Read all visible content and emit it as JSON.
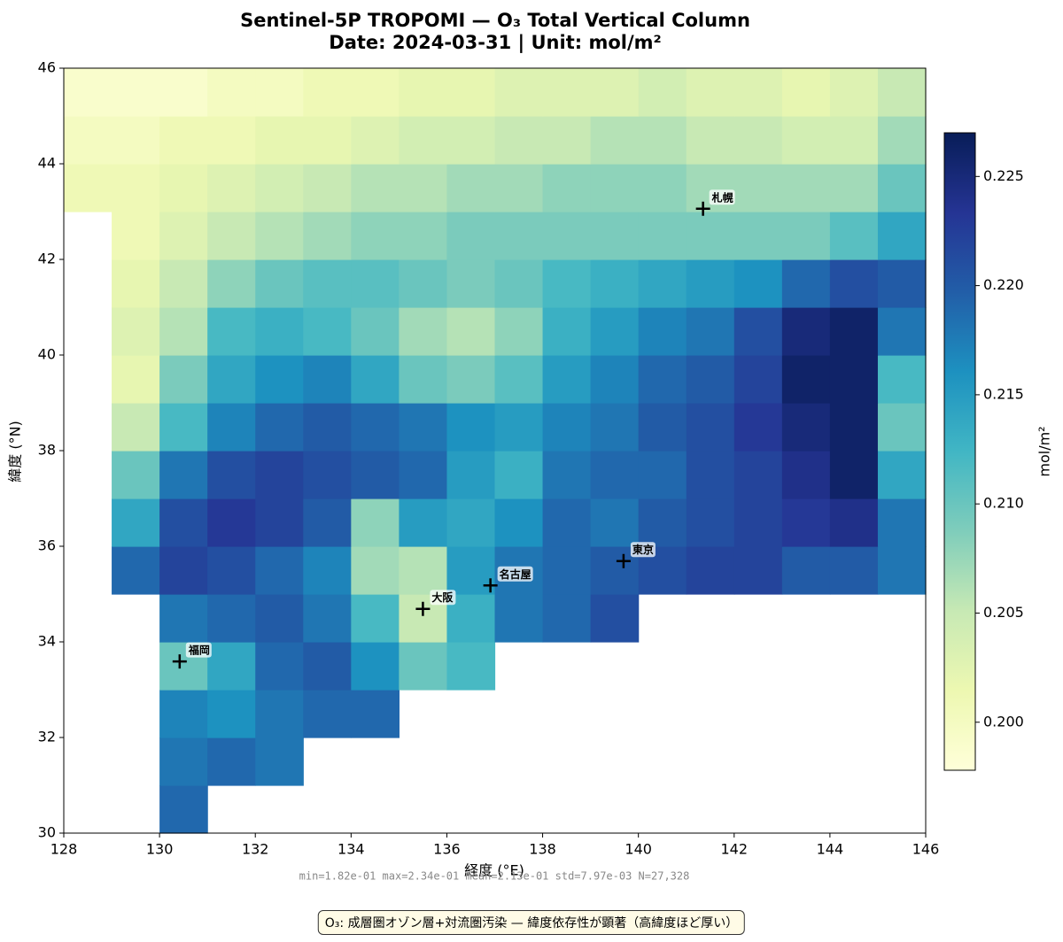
{
  "chart_data": {
    "type": "heatmap",
    "title": "Sentinel-5P TROPOMI — O₃ Total Vertical Column",
    "subtitle": "Date: 2024-03-31  |  Unit: mol/m²",
    "x_label": "経度 (°E)",
    "y_label": "緯度 (°N)",
    "xlim": [
      128,
      146
    ],
    "ylim": [
      30,
      46
    ],
    "xticks": [
      128,
      130,
      132,
      134,
      136,
      138,
      140,
      142,
      144,
      146
    ],
    "yticks": [
      30,
      32,
      34,
      36,
      38,
      40,
      42,
      44,
      46
    ],
    "xbins": [
      128,
      129,
      130,
      131,
      132,
      133,
      134,
      135,
      136,
      137,
      138,
      139,
      140,
      141,
      142,
      143,
      144,
      145,
      146
    ],
    "ybins": [
      30,
      31,
      32,
      33,
      34,
      35,
      36,
      37,
      38,
      39,
      40,
      41,
      42,
      43,
      44,
      45,
      46
    ],
    "z": [
      [
        null,
        null,
        0.219,
        null,
        null,
        null,
        null,
        null,
        null,
        null,
        null,
        null,
        null,
        null,
        null,
        null,
        null,
        null
      ],
      [
        null,
        null,
        0.218,
        0.219,
        0.218,
        null,
        null,
        null,
        null,
        null,
        null,
        null,
        null,
        null,
        null,
        null,
        null,
        null
      ],
      [
        null,
        null,
        0.217,
        0.216,
        0.218,
        0.219,
        0.219,
        null,
        null,
        null,
        null,
        null,
        null,
        null,
        null,
        null,
        null,
        null
      ],
      [
        null,
        null,
        0.21,
        0.214,
        0.219,
        0.22,
        0.216,
        0.21,
        0.212,
        null,
        null,
        null,
        null,
        null,
        null,
        null,
        null,
        null
      ],
      [
        null,
        null,
        0.218,
        0.219,
        0.22,
        0.218,
        0.212,
        0.205,
        0.213,
        0.218,
        0.219,
        0.221,
        null,
        null,
        null,
        null,
        null,
        null
      ],
      [
        null,
        0.219,
        0.222,
        0.221,
        0.219,
        0.217,
        0.207,
        0.206,
        0.215,
        0.218,
        0.219,
        0.22,
        0.221,
        0.222,
        0.222,
        0.22,
        0.22,
        0.218
      ],
      [
        null,
        0.214,
        0.221,
        0.223,
        0.222,
        0.22,
        0.208,
        0.215,
        0.214,
        0.216,
        0.219,
        0.218,
        0.22,
        0.221,
        0.222,
        0.223,
        0.224,
        0.218
      ],
      [
        null,
        0.21,
        0.218,
        0.221,
        0.222,
        0.221,
        0.22,
        0.219,
        0.215,
        0.213,
        0.218,
        0.219,
        0.219,
        0.221,
        0.222,
        0.224,
        0.226,
        0.214
      ],
      [
        null,
        0.205,
        0.212,
        0.217,
        0.219,
        0.22,
        0.219,
        0.218,
        0.216,
        0.215,
        0.217,
        0.218,
        0.22,
        0.221,
        0.223,
        0.225,
        0.226,
        0.21
      ],
      [
        null,
        0.202,
        0.209,
        0.214,
        0.216,
        0.217,
        0.214,
        0.21,
        0.209,
        0.211,
        0.215,
        0.217,
        0.219,
        0.22,
        0.222,
        0.226,
        0.226,
        0.212
      ],
      [
        null,
        0.203,
        0.206,
        0.212,
        0.213,
        0.212,
        0.21,
        0.207,
        0.206,
        0.208,
        0.213,
        0.215,
        0.217,
        0.218,
        0.221,
        0.225,
        0.226,
        0.218
      ],
      [
        null,
        0.202,
        0.205,
        0.208,
        0.21,
        0.211,
        0.211,
        0.21,
        0.209,
        0.21,
        0.212,
        0.213,
        0.214,
        0.215,
        0.216,
        0.219,
        0.221,
        0.22
      ],
      [
        null,
        0.201,
        0.203,
        0.205,
        0.206,
        0.207,
        0.208,
        0.208,
        0.209,
        0.209,
        0.209,
        0.209,
        0.209,
        0.209,
        0.209,
        0.209,
        0.211,
        0.214
      ],
      [
        0.201,
        0.201,
        0.202,
        0.203,
        0.204,
        0.205,
        0.206,
        0.206,
        0.207,
        0.207,
        0.208,
        0.208,
        0.208,
        0.207,
        0.207,
        0.207,
        0.207,
        0.21
      ],
      [
        0.2,
        0.2,
        0.201,
        0.201,
        0.202,
        0.202,
        0.203,
        0.204,
        0.204,
        0.205,
        0.205,
        0.206,
        0.206,
        0.205,
        0.205,
        0.204,
        0.204,
        0.207
      ],
      [
        0.199,
        0.199,
        0.199,
        0.2,
        0.2,
        0.201,
        0.201,
        0.202,
        0.202,
        0.203,
        0.203,
        0.203,
        0.204,
        0.203,
        0.203,
        0.202,
        0.203,
        0.205
      ]
    ],
    "colormap": [
      "#ffffd9",
      "#edf8b1",
      "#c7e9b4",
      "#7fcdbb",
      "#41b6c4",
      "#1d91c0",
      "#225ea8",
      "#253494",
      "#081d58"
    ],
    "clim": [
      0.1978,
      0.227
    ],
    "colorbar_label": "mol/m²",
    "colorbar_ticks": [
      {
        "value": 0.2,
        "label": "0.200"
      },
      0.205,
      {
        "value": 0.21,
        "label": "0.210"
      },
      0.215,
      {
        "value": 0.22,
        "label": "0.220"
      },
      0.225
    ],
    "markers": [
      {
        "name": "札幌",
        "lon": 141.35,
        "lat": 43.06
      },
      {
        "name": "東京",
        "lon": 139.69,
        "lat": 35.69
      },
      {
        "name": "名古屋",
        "lon": 136.91,
        "lat": 35.18
      },
      {
        "name": "大阪",
        "lon": 135.5,
        "lat": 34.69
      },
      {
        "name": "福岡",
        "lon": 130.42,
        "lat": 33.59
      }
    ],
    "stats": "min=1.82e-01  max=2.34e-01  mean=2.13e-01  std=7.97e-03  N=27,328",
    "note": "O₃: 成層圏オゾン層+対流圏汚染 — 緯度依存性が顕著（高緯度ほど厚い）"
  }
}
